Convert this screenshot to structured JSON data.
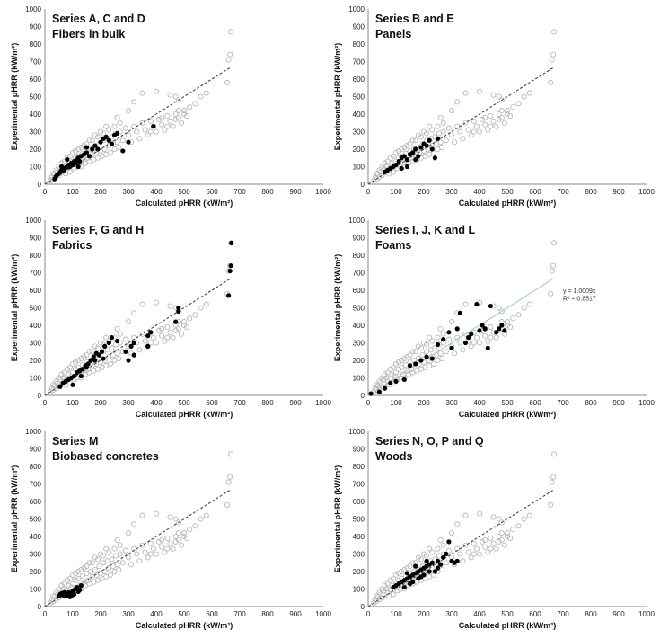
{
  "figure": {
    "xlabel": "Calculated pHRR (kW/m²)",
    "ylabel": "Experimental pHRR (kW/m²)",
    "ticks": [
      "0",
      "100",
      "200",
      "300",
      "400",
      "500",
      "600",
      "700",
      "800",
      "900",
      "1000"
    ]
  },
  "colors": {
    "background_series": "#b8b8b8",
    "highlight_series": "#000000",
    "trendline": "#444444",
    "trendline_fit": "#9dc3e6"
  },
  "chart_data": [
    {
      "type": "scatter",
      "title": [
        "Series A, C and D",
        "Fibers in bulk"
      ],
      "xlabel": "Calculated pHRR (kW/m²)",
      "ylabel": "Experimental pHRR (kW/m²)",
      "xlim": [
        0,
        1000
      ],
      "ylim": [
        0,
        1000
      ],
      "grid": false,
      "trendline": {
        "style": "dashed",
        "from": [
          0,
          0
        ],
        "to": [
          665,
          665
        ]
      },
      "highlight": [
        [
          35,
          30
        ],
        [
          40,
          45
        ],
        [
          45,
          55
        ],
        [
          50,
          60
        ],
        [
          55,
          70
        ],
        [
          60,
          80
        ],
        [
          65,
          75
        ],
        [
          70,
          90
        ],
        [
          75,
          95
        ],
        [
          80,
          100
        ],
        [
          85,
          110
        ],
        [
          90,
          100
        ],
        [
          95,
          120
        ],
        [
          100,
          110
        ],
        [
          105,
          130
        ],
        [
          110,
          120
        ],
        [
          115,
          140
        ],
        [
          120,
          150
        ],
        [
          125,
          130
        ],
        [
          130,
          160
        ],
        [
          140,
          170
        ],
        [
          150,
          180
        ],
        [
          160,
          160
        ],
        [
          170,
          200
        ],
        [
          180,
          220
        ],
        [
          190,
          200
        ],
        [
          200,
          240
        ],
        [
          210,
          260
        ],
        [
          220,
          270
        ],
        [
          230,
          250
        ],
        [
          240,
          230
        ],
        [
          250,
          280
        ],
        [
          260,
          290
        ],
        [
          280,
          190
        ],
        [
          300,
          240
        ],
        [
          390,
          330
        ],
        [
          60,
          100
        ],
        [
          80,
          140
        ],
        [
          120,
          100
        ],
        [
          150,
          210
        ]
      ]
    },
    {
      "type": "scatter",
      "title": [
        "Series B and E",
        "Panels"
      ],
      "xlabel": "Calculated pHRR (kW/m²)",
      "ylabel": "Experimental pHRR (kW/m²)",
      "xlim": [
        0,
        1000
      ],
      "ylim": [
        0,
        1000
      ],
      "grid": false,
      "trendline": {
        "style": "dashed",
        "from": [
          0,
          0
        ],
        "to": [
          665,
          665
        ]
      },
      "highlight": [
        [
          60,
          70
        ],
        [
          70,
          80
        ],
        [
          80,
          90
        ],
        [
          90,
          100
        ],
        [
          100,
          110
        ],
        [
          110,
          130
        ],
        [
          120,
          150
        ],
        [
          130,
          160
        ],
        [
          140,
          140
        ],
        [
          150,
          170
        ],
        [
          160,
          180
        ],
        [
          170,
          200
        ],
        [
          180,
          160
        ],
        [
          190,
          210
        ],
        [
          200,
          230
        ],
        [
          210,
          220
        ],
        [
          220,
          250
        ],
        [
          230,
          200
        ],
        [
          240,
          150
        ],
        [
          250,
          260
        ],
        [
          120,
          90
        ],
        [
          140,
          100
        ],
        [
          170,
          140
        ]
      ]
    },
    {
      "type": "scatter",
      "title": [
        "Series F, G and H",
        "Fabrics"
      ],
      "xlabel": "Calculated pHRR (kW/m²)",
      "ylabel": "Experimental pHRR (kW/m²)",
      "xlim": [
        0,
        1000
      ],
      "ylim": [
        0,
        1000
      ],
      "grid": false,
      "trendline": {
        "style": "dashed",
        "from": [
          0,
          0
        ],
        "to": [
          665,
          665
        ]
      },
      "highlight": [
        [
          55,
          50
        ],
        [
          65,
          70
        ],
        [
          75,
          80
        ],
        [
          85,
          90
        ],
        [
          95,
          100
        ],
        [
          105,
          110
        ],
        [
          115,
          130
        ],
        [
          125,
          140
        ],
        [
          135,
          150
        ],
        [
          145,
          170
        ],
        [
          155,
          180
        ],
        [
          165,
          200
        ],
        [
          175,
          220
        ],
        [
          185,
          240
        ],
        [
          195,
          230
        ],
        [
          205,
          250
        ],
        [
          215,
          280
        ],
        [
          230,
          300
        ],
        [
          260,
          310
        ],
        [
          290,
          250
        ],
        [
          310,
          280
        ],
        [
          320,
          300
        ],
        [
          370,
          340
        ],
        [
          380,
          360
        ],
        [
          470,
          420
        ],
        [
          480,
          480
        ],
        [
          480,
          500
        ],
        [
          660,
          570
        ],
        [
          665,
          710
        ],
        [
          668,
          740
        ],
        [
          670,
          870
        ],
        [
          100,
          60
        ],
        [
          130,
          110
        ],
        [
          150,
          160
        ],
        [
          180,
          200
        ],
        [
          210,
          210
        ],
        [
          240,
          330
        ],
        [
          300,
          200
        ],
        [
          320,
          230
        ],
        [
          370,
          280
        ]
      ]
    },
    {
      "type": "scatter",
      "title": [
        "Series I, J, K and L",
        "Foams"
      ],
      "xlabel": "Calculated pHRR (kW/m²)",
      "ylabel": "Experimental pHRR (kW/m²)",
      "xlim": [
        0,
        1000
      ],
      "ylim": [
        0,
        1000
      ],
      "grid": false,
      "trendline": {
        "style": "solid",
        "from": [
          0,
          0
        ],
        "to": [
          665,
          665
        ],
        "equation": "y = 1.0009x",
        "r2": "R² = 0.8517"
      },
      "highlight": [
        [
          10,
          10
        ],
        [
          40,
          20
        ],
        [
          60,
          40
        ],
        [
          80,
          70
        ],
        [
          100,
          80
        ],
        [
          130,
          90
        ],
        [
          150,
          170
        ],
        [
          170,
          180
        ],
        [
          190,
          200
        ],
        [
          210,
          220
        ],
        [
          230,
          210
        ],
        [
          250,
          290
        ],
        [
          270,
          320
        ],
        [
          290,
          360
        ],
        [
          320,
          380
        ],
        [
          330,
          470
        ],
        [
          350,
          300
        ],
        [
          370,
          350
        ],
        [
          390,
          520
        ],
        [
          400,
          370
        ],
        [
          410,
          400
        ],
        [
          420,
          380
        ],
        [
          430,
          270
        ],
        [
          440,
          510
        ],
        [
          460,
          360
        ],
        [
          470,
          380
        ],
        [
          480,
          400
        ],
        [
          490,
          370
        ],
        [
          300,
          270
        ],
        [
          360,
          330
        ]
      ]
    },
    {
      "type": "scatter",
      "title": [
        "Series M",
        "Biobased concretes"
      ],
      "xlabel": "Calculated pHRR (kW/m²)",
      "ylabel": "Experimental pHRR (kW/m²)",
      "xlim": [
        0,
        1000
      ],
      "ylim": [
        0,
        1000
      ],
      "grid": false,
      "trendline": {
        "style": "dashed",
        "from": [
          0,
          0
        ],
        "to": [
          665,
          665
        ]
      },
      "highlight": [
        [
          50,
          60
        ],
        [
          55,
          70
        ],
        [
          60,
          75
        ],
        [
          65,
          65
        ],
        [
          70,
          80
        ],
        [
          75,
          60
        ],
        [
          80,
          70
        ],
        [
          85,
          80
        ],
        [
          90,
          75
        ],
        [
          95,
          60
        ],
        [
          100,
          90
        ],
        [
          105,
          70
        ],
        [
          110,
          100
        ],
        [
          115,
          110
        ],
        [
          120,
          85
        ],
        [
          125,
          95
        ],
        [
          130,
          120
        ],
        [
          90,
          55
        ]
      ]
    },
    {
      "type": "scatter",
      "title": [
        "Series N, O, P and Q",
        "Woods"
      ],
      "xlabel": "Calculated pHRR (kW/m²)",
      "ylabel": "Experimental pHRR (kW/m²)",
      "xlim": [
        0,
        1000
      ],
      "ylim": [
        0,
        1000
      ],
      "grid": false,
      "trendline": {
        "style": "dashed",
        "from": [
          0,
          0
        ],
        "to": [
          665,
          665
        ]
      },
      "highlight": [
        [
          90,
          110
        ],
        [
          100,
          120
        ],
        [
          110,
          130
        ],
        [
          120,
          140
        ],
        [
          130,
          150
        ],
        [
          140,
          160
        ],
        [
          150,
          170
        ],
        [
          160,
          180
        ],
        [
          170,
          190
        ],
        [
          180,
          200
        ],
        [
          190,
          210
        ],
        [
          200,
          220
        ],
        [
          210,
          230
        ],
        [
          220,
          240
        ],
        [
          230,
          250
        ],
        [
          240,
          200
        ],
        [
          250,
          260
        ],
        [
          260,
          240
        ],
        [
          270,
          280
        ],
        [
          280,
          300
        ],
        [
          290,
          370
        ],
        [
          300,
          260
        ],
        [
          310,
          250
        ],
        [
          320,
          260
        ],
        [
          150,
          130
        ],
        [
          180,
          160
        ],
        [
          200,
          180
        ],
        [
          140,
          190
        ],
        [
          170,
          230
        ],
        [
          220,
          200
        ],
        [
          130,
          110
        ],
        [
          160,
          140
        ],
        [
          190,
          170
        ],
        [
          210,
          260
        ],
        [
          250,
          220
        ]
      ]
    }
  ],
  "background_points": [
    [
      20,
      20
    ],
    [
      25,
      40
    ],
    [
      30,
      30
    ],
    [
      35,
      55
    ],
    [
      40,
      40
    ],
    [
      45,
      70
    ],
    [
      50,
      50
    ],
    [
      55,
      90
    ],
    [
      60,
      65
    ],
    [
      65,
      100
    ],
    [
      70,
      80
    ],
    [
      75,
      60
    ],
    [
      80,
      95
    ],
    [
      85,
      120
    ],
    [
      90,
      70
    ],
    [
      95,
      110
    ],
    [
      100,
      130
    ],
    [
      105,
      90
    ],
    [
      110,
      150
    ],
    [
      115,
      100
    ],
    [
      120,
      160
    ],
    [
      125,
      120
    ],
    [
      130,
      100
    ],
    [
      135,
      175
    ],
    [
      140,
      140
    ],
    [
      145,
      120
    ],
    [
      150,
      190
    ],
    [
      155,
      150
    ],
    [
      160,
      130
    ],
    [
      165,
      200
    ],
    [
      170,
      170
    ],
    [
      175,
      140
    ],
    [
      180,
      210
    ],
    [
      185,
      180
    ],
    [
      190,
      150
    ],
    [
      195,
      230
    ],
    [
      200,
      190
    ],
    [
      205,
      160
    ],
    [
      210,
      250
    ],
    [
      215,
      200
    ],
    [
      220,
      170
    ],
    [
      225,
      260
    ],
    [
      230,
      220
    ],
    [
      235,
      180
    ],
    [
      240,
      270
    ],
    [
      245,
      230
    ],
    [
      250,
      200
    ],
    [
      255,
      290
    ],
    [
      260,
      240
    ],
    [
      265,
      210
    ],
    [
      270,
      300
    ],
    [
      280,
      250
    ],
    [
      290,
      320
    ],
    [
      300,
      280
    ],
    [
      310,
      240
    ],
    [
      320,
      330
    ],
    [
      330,
      300
    ],
    [
      340,
      260
    ],
    [
      350,
      350
    ],
    [
      360,
      310
    ],
    [
      370,
      280
    ],
    [
      380,
      360
    ],
    [
      390,
      330
    ],
    [
      400,
      300
    ],
    [
      410,
      370
    ],
    [
      420,
      340
    ],
    [
      430,
      310
    ],
    [
      440,
      390
    ],
    [
      450,
      360
    ],
    [
      460,
      330
    ],
    [
      470,
      400
    ],
    [
      480,
      380
    ],
    [
      490,
      350
    ],
    [
      500,
      420
    ],
    [
      510,
      390
    ],
    [
      520,
      440
    ],
    [
      540,
      460
    ],
    [
      560,
      500
    ],
    [
      580,
      520
    ],
    [
      350,
      520
    ],
    [
      400,
      530
    ],
    [
      450,
      510
    ],
    [
      470,
      500
    ],
    [
      480,
      480
    ],
    [
      320,
      470
    ],
    [
      300,
      420
    ],
    [
      260,
      380
    ],
    [
      220,
      330
    ],
    [
      200,
      300
    ],
    [
      180,
      280
    ],
    [
      160,
      250
    ],
    [
      140,
      220
    ],
    [
      120,
      200
    ],
    [
      100,
      180
    ],
    [
      80,
      150
    ],
    [
      60,
      120
    ],
    [
      50,
      100
    ],
    [
      40,
      80
    ],
    [
      30,
      60
    ],
    [
      70,
      130
    ],
    [
      90,
      160
    ],
    [
      110,
      190
    ],
    [
      130,
      210
    ],
    [
      150,
      230
    ],
    [
      170,
      250
    ],
    [
      190,
      270
    ],
    [
      210,
      290
    ],
    [
      230,
      310
    ],
    [
      250,
      330
    ],
    [
      270,
      350
    ],
    [
      655,
      580
    ],
    [
      660,
      710
    ],
    [
      665,
      740
    ],
    [
      668,
      870
    ],
    [
      480,
      420
    ],
    [
      500,
      400
    ],
    [
      470,
      370
    ],
    [
      380,
      300
    ],
    [
      420,
      380
    ],
    [
      440,
      330
    ]
  ]
}
